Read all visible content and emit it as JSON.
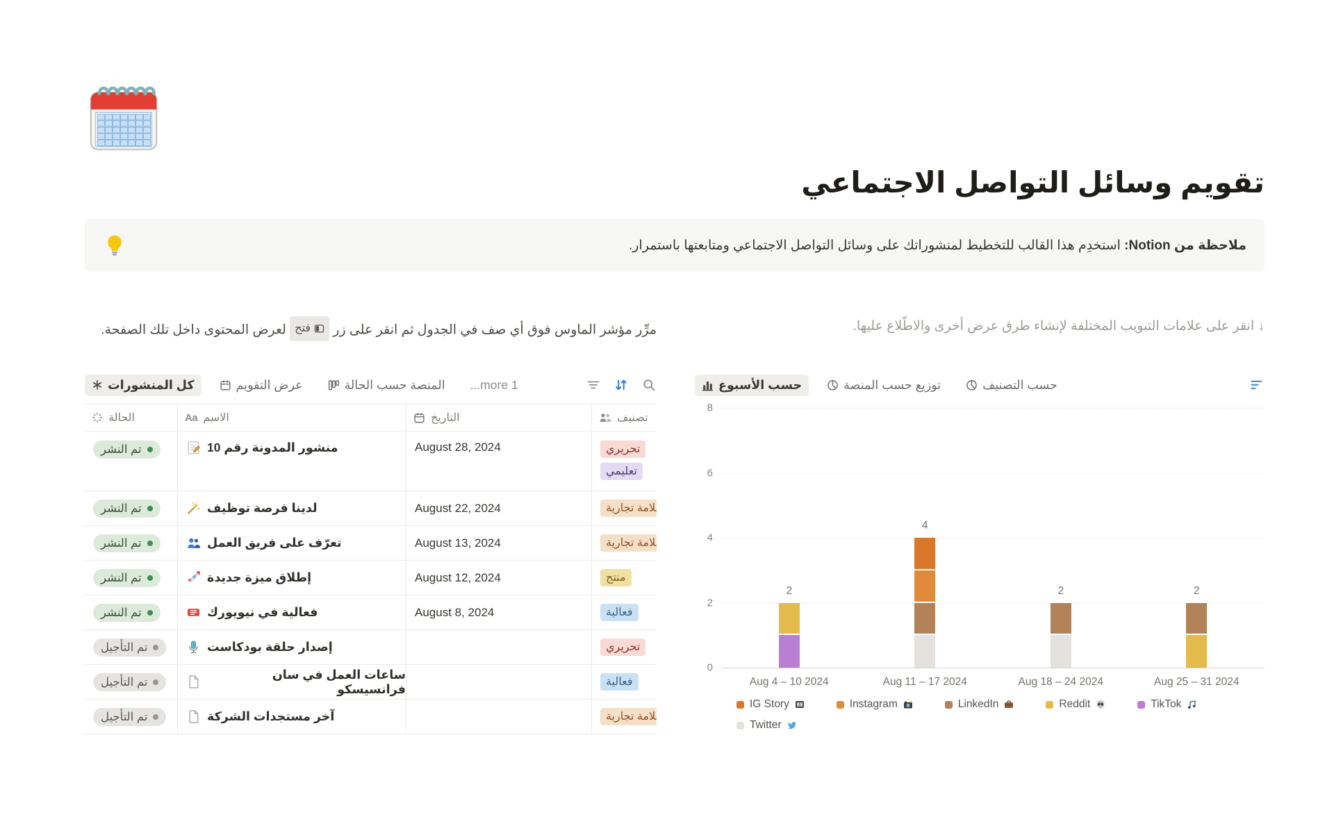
{
  "page": {
    "icon": "spiral-calendar",
    "title": "تقويم وسائل التواصل الاجتماعي",
    "callout": {
      "icon": "lightbulb",
      "bold": "ملاحظة من Notion:",
      "text": " استخدِم هذا القالب للتخطيط لمنشوراتك على وسائل التواصل الاجتماعي ومتابعتها باستمرار."
    }
  },
  "table_section": {
    "instruction_before": "مرِّر مؤشر الماوس فوق أي صف في الجدول ثم انقر على زر",
    "open_button_label": "فتح",
    "instruction_after": "لعرض المحتوى داخل تلك الصفحة.",
    "tabs": [
      {
        "label": "كل المنشورات",
        "icon": "starburst",
        "active": true
      },
      {
        "label": "عرض التقويم",
        "icon": "calendar",
        "active": false
      },
      {
        "label": "المنصة حسب الحالة",
        "icon": "board",
        "active": false
      },
      {
        "label": "1 more...",
        "icon": null,
        "active": false,
        "more": true
      }
    ],
    "toolbar": [
      "filter",
      "sort",
      "search"
    ],
    "columns": [
      {
        "label": "الحالة",
        "icon": "status-burst"
      },
      {
        "label": "الاسم",
        "icon": "aa"
      },
      {
        "label": "التاريخ",
        "icon": "calendar"
      },
      {
        "label": "تصنيف",
        "icon": "people-gray"
      }
    ],
    "rows": [
      {
        "status": "تم النشر",
        "status_type": "green",
        "icon": "memo",
        "name": "منشور المدونة رقم 10",
        "date": "August 28, 2024",
        "tags": [
          {
            "label": "تحريري",
            "color": "red"
          },
          {
            "label": "تعليمي",
            "color": "purple"
          }
        ]
      },
      {
        "status": "تم النشر",
        "status_type": "green",
        "icon": "wand",
        "name": "لدينا فرصة توظيف",
        "date": "August 22, 2024",
        "tags": [
          {
            "label": "علامة تجارية",
            "color": "orange"
          }
        ]
      },
      {
        "status": "تم النشر",
        "status_type": "green",
        "icon": "people-blue",
        "name": "تعرّف على فريق العمل",
        "date": "August 13, 2024",
        "tags": [
          {
            "label": "علامة تجارية",
            "color": "orange"
          }
        ]
      },
      {
        "status": "تم النشر",
        "status_type": "green",
        "icon": "rocket",
        "name": "إطلاق ميزة جديدة",
        "date": "August 12, 2024",
        "tags": [
          {
            "label": "منتج",
            "color": "yellow"
          }
        ]
      },
      {
        "status": "تم النشر",
        "status_type": "green",
        "icon": "ticket",
        "name": "فعالية في نيويورك",
        "date": "August 8, 2024",
        "tags": [
          {
            "label": "فعالية",
            "color": "blue"
          }
        ]
      },
      {
        "status": "تم التأجيل",
        "status_type": "gray",
        "icon": "microphone",
        "name": "إصدار حلقة بودكاست",
        "date": "",
        "tags": [
          {
            "label": "تحريري",
            "color": "red"
          }
        ]
      },
      {
        "status": "تم التأجيل",
        "status_type": "gray",
        "icon": "page",
        "name": "ساعات العمل في سان فرانسيسكو",
        "date": "",
        "tags": [
          {
            "label": "فعالية",
            "color": "blue"
          }
        ]
      },
      {
        "status": "تم التأجيل",
        "status_type": "gray",
        "icon": "page",
        "name": "آخر مستجدات الشركة",
        "date": "",
        "tags": [
          {
            "label": "علامة تجارية",
            "color": "orange"
          }
        ]
      }
    ]
  },
  "chart_section": {
    "instruction": "↓ انقر على علامات التبويب المختلفة لإنشاء طرق عرض أخرى والاطّلاع عليها.",
    "tabs": [
      {
        "label": "حسب الأسبوع",
        "icon": "bar-chart",
        "active": true
      },
      {
        "label": "توزيع حسب المنصة",
        "icon": "pie-chart",
        "active": false
      },
      {
        "label": "حسب التصنيف",
        "icon": "pie-chart",
        "active": false
      }
    ],
    "toolbar": [
      "filter-blue"
    ]
  },
  "chart_data": {
    "type": "bar",
    "stacked": true,
    "categories": [
      "Aug 4 – 10 2024",
      "Aug 11 – 17 2024",
      "Aug 18 – 24 2024",
      "Aug 25 – 31 2024"
    ],
    "series": [
      {
        "name": "IG Story",
        "emoji": "🎞️",
        "emoji_name": "film-frames",
        "color": "#d9772a",
        "values": [
          0,
          1,
          0,
          0
        ]
      },
      {
        "name": "Instagram",
        "emoji": "📸",
        "emoji_name": "camera-flash",
        "color": "#e08b3c",
        "values": [
          0,
          1,
          0,
          0
        ]
      },
      {
        "name": "LinkedIn",
        "emoji": "💼",
        "emoji_name": "briefcase",
        "color": "#b28258",
        "values": [
          0,
          1,
          1,
          1
        ]
      },
      {
        "name": "Reddit",
        "emoji": "👽",
        "emoji_name": "alien",
        "color": "#e3ba4c",
        "values": [
          1,
          0,
          0,
          1
        ]
      },
      {
        "name": "TikTok",
        "emoji": "🎵",
        "emoji_name": "music-note",
        "color": "#b97fd3",
        "values": [
          1,
          0,
          0,
          0
        ]
      },
      {
        "name": "Twitter",
        "emoji": "🐦",
        "emoji_name": "bird",
        "color": "#e4e2df",
        "values": [
          0,
          1,
          1,
          0
        ]
      }
    ],
    "totals": [
      2,
      4,
      2,
      2
    ],
    "stack_order_bottom_to_top": [
      "Twitter",
      "TikTok",
      "Reddit",
      "LinkedIn",
      "Instagram",
      "IG Story"
    ],
    "ylim": [
      0,
      8
    ],
    "yticks": [
      0,
      2,
      4,
      6,
      8
    ],
    "grid": "horizontal-dotted",
    "legend_position": "bottom"
  }
}
